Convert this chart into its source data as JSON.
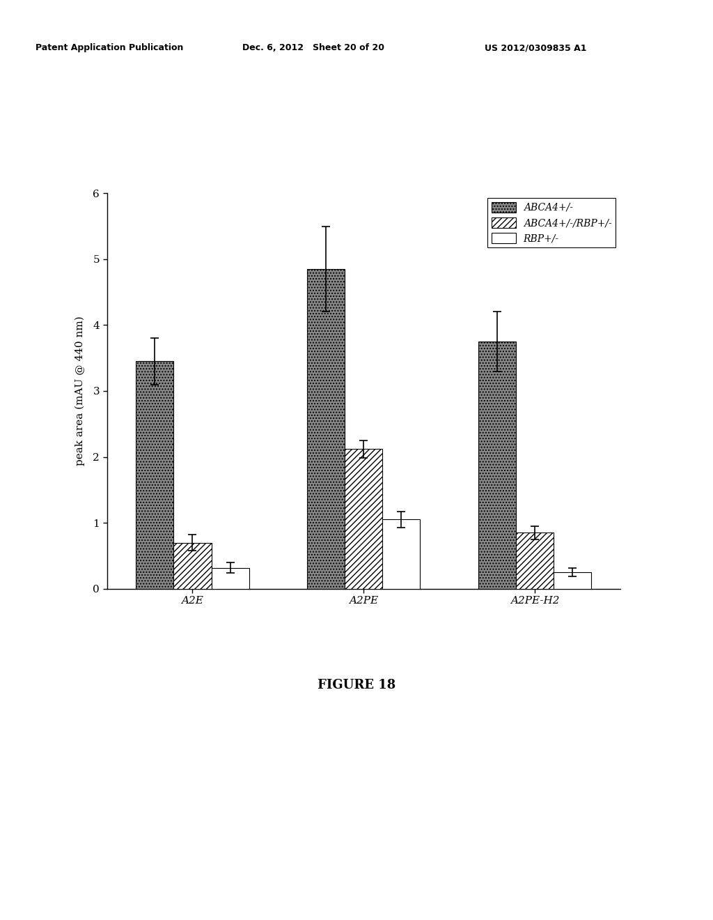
{
  "categories": [
    "A2E",
    "A2PE",
    "A2PE-H2"
  ],
  "series": [
    {
      "label": "ABCA4+/-",
      "values": [
        3.45,
        4.85,
        3.75
      ],
      "errors": [
        0.35,
        0.65,
        0.45
      ],
      "hatch": "....",
      "facecolor": "#888888",
      "edgecolor": "#000000"
    },
    {
      "label": "ABCA4+/-/RBP+/-",
      "values": [
        0.7,
        2.12,
        0.85
      ],
      "errors": [
        0.12,
        0.13,
        0.1
      ],
      "hatch": "////",
      "facecolor": "#ffffff",
      "edgecolor": "#000000"
    },
    {
      "label": "RBP+/-",
      "values": [
        0.32,
        1.05,
        0.25
      ],
      "errors": [
        0.08,
        0.12,
        0.06
      ],
      "hatch": "",
      "facecolor": "#ffffff",
      "edgecolor": "#000000"
    }
  ],
  "ylabel": "peak area (mAU @ 440 nm)",
  "ylim": [
    0,
    6
  ],
  "yticks": [
    0,
    1,
    2,
    3,
    4,
    5,
    6
  ],
  "header_left": "Patent Application Publication",
  "header_center": "Dec. 6, 2012   Sheet 20 of 20",
  "header_right": "US 2012/0309835 A1",
  "figure_caption": "FIGURE 18",
  "bar_width": 0.22,
  "background_color": "#ffffff",
  "legend_fontsize": 10,
  "axis_fontsize": 11,
  "tick_fontsize": 11,
  "header_fontsize": 9,
  "caption_fontsize": 13
}
